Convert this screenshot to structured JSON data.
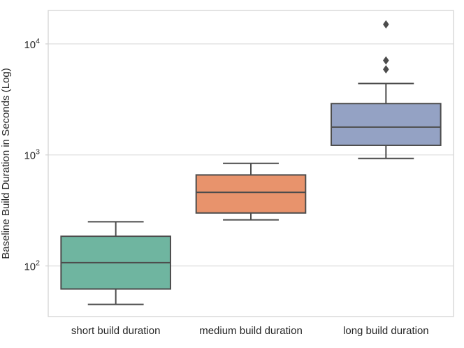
{
  "figure": {
    "background": "#ffffff"
  },
  "chart_data": {
    "type": "box",
    "title": "",
    "xlabel": "",
    "ylabel": "Baseline Build Duration in Seconds (Log)",
    "yscale": "log",
    "ylim": [
      35,
      20000
    ],
    "grid": "horizontal-major-only",
    "legend": "none",
    "y_ticks": [
      {
        "value": 100,
        "base": "10",
        "exponent": "2"
      },
      {
        "value": 1000,
        "base": "10",
        "exponent": "3"
      },
      {
        "value": 10000,
        "base": "10",
        "exponent": "4"
      }
    ],
    "categories": [
      "short build duration",
      "medium build duration",
      "long build duration"
    ],
    "boxes": [
      {
        "category": "short build duration",
        "fill_color": "#6fb5a0",
        "whisker_low": 45,
        "q1": 62,
        "median": 107,
        "q3": 185,
        "whisker_high": 250,
        "outliers": []
      },
      {
        "category": "medium build duration",
        "fill_color": "#e8936c",
        "whisker_low": 260,
        "q1": 300,
        "median": 460,
        "q3": 660,
        "whisker_high": 840,
        "outliers": []
      },
      {
        "category": "long build duration",
        "fill_color": "#94a2c4",
        "whisker_low": 930,
        "q1": 1220,
        "median": 1780,
        "q3": 2900,
        "whisker_high": 4400,
        "outliers": [
          5900,
          7100,
          15000
        ]
      }
    ],
    "style": {
      "box_edge_color": "#4c4c4c",
      "outlier_color": "#4c4c4c",
      "grid_color": "#e0e0e0",
      "spine_color": "#d4d4d4",
      "text_color": "#262626",
      "background": "#ffffff"
    }
  }
}
